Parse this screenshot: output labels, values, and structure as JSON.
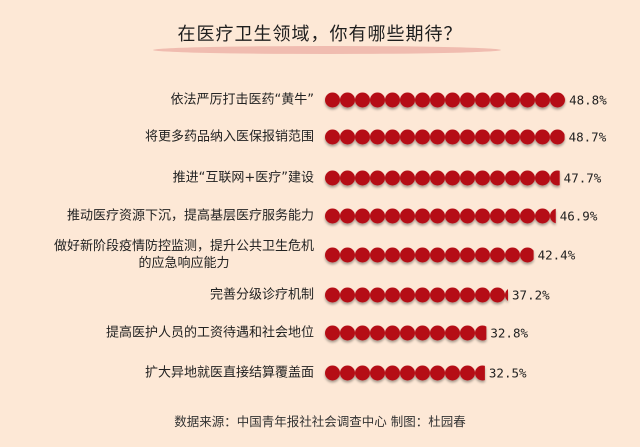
{
  "chart_data": {
    "type": "bar",
    "orientation": "horizontal",
    "title": "在医疗卫生领域，你有哪些期待？",
    "categories": [
      "依法严厉打击医药“黄牛”",
      "将更多药品纳入医保报销范围",
      "推进“互联网+医疗”建设",
      "推动医疗资源下沉，提高基层医疗服务能力",
      "做好新阶段疫情防控监测，提升公共卫生危机\n的应急响应能力",
      "完善分级诊疗机制",
      "提高医护人员的工资待遇和社会地位",
      "扩大异地就医直接结算覆盖面"
    ],
    "values": [
      48.8,
      48.7,
      47.7,
      46.9,
      42.4,
      37.2,
      32.8,
      32.5
    ],
    "value_labels": [
      "48.8%",
      "48.7%",
      "47.7%",
      "46.9%",
      "42.4%",
      "37.2%",
      "32.8%",
      "32.5%"
    ],
    "unit": "%",
    "bar_style": "dots",
    "bar_color": "#b50d14",
    "background": "#fde8d6",
    "grid": false,
    "source": "数据来源：中国青年报社社会调查中心   制图：杜园春"
  }
}
